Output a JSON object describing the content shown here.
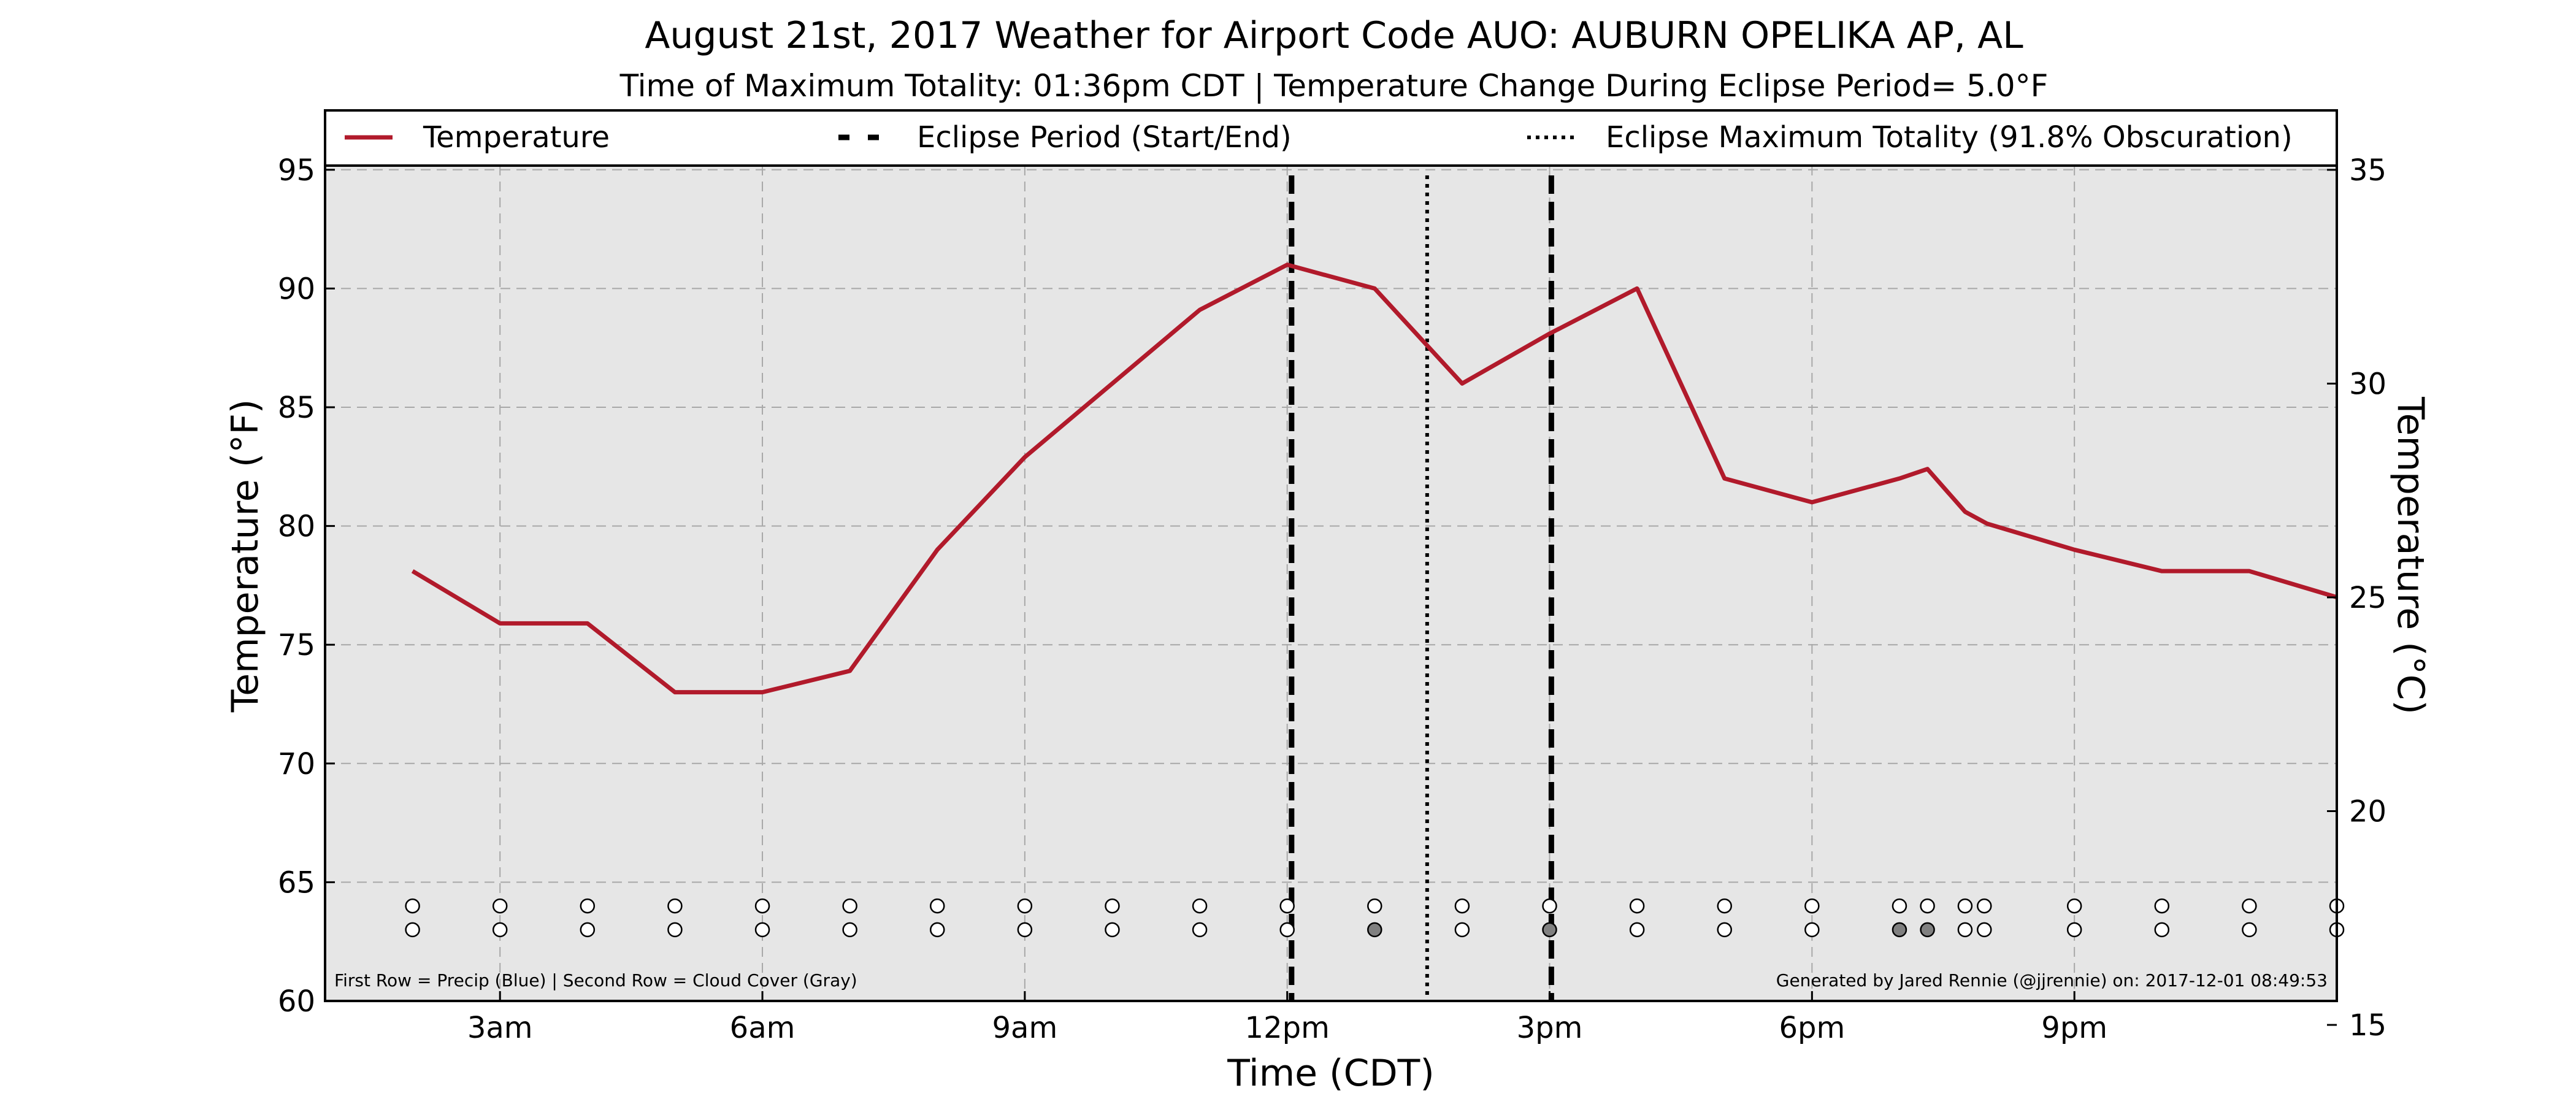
{
  "chart_data": {
    "type": "line",
    "title": "August 21st, 2017 Weather for Airport Code AUO: AUBURN OPELIKA AP, AL",
    "subtitle": "Time of Maximum Totality: 01:36pm CDT | Temperature Change During Eclipse Period= 5.0°F",
    "xlabel": "Time (CDT)",
    "ylabel": "Temperature (°F)",
    "ylabel_right": "Temperature (°C)",
    "xlim": [
      1.0,
      24.0
    ],
    "ylim": [
      60,
      97.5
    ],
    "ylim_right": [
      15.56,
      36.39
    ],
    "grid": true,
    "legend_placement": "top",
    "x_ticks": [
      {
        "x": 3,
        "label": "3am"
      },
      {
        "x": 6,
        "label": "6am"
      },
      {
        "x": 9,
        "label": "9am"
      },
      {
        "x": 12,
        "label": "12pm"
      },
      {
        "x": 15,
        "label": "3pm"
      },
      {
        "x": 18,
        "label": "6pm"
      },
      {
        "x": 21,
        "label": "9pm"
      }
    ],
    "y_ticks": [
      60,
      65,
      70,
      75,
      80,
      85,
      90,
      95
    ],
    "y_ticks_right": [
      15,
      20,
      25,
      30,
      35
    ],
    "series": [
      {
        "name": "Temperature",
        "color": "#b11a2b",
        "x": [
          2.0,
          3.0,
          4.0,
          5.0,
          6.0,
          7.0,
          8.0,
          9.0,
          10.0,
          11.0,
          12.0,
          13.0,
          14.0,
          15.0,
          16.0,
          17.0,
          18.0,
          19.0,
          19.32,
          19.75,
          20.0,
          21.0,
          22.0,
          23.0,
          24.0
        ],
        "y": [
          78.1,
          75.9,
          75.9,
          73.0,
          73.0,
          73.9,
          79.0,
          82.9,
          86.0,
          89.1,
          91.0,
          90.0,
          86.0,
          88.1,
          90.0,
          82.0,
          81.0,
          82.0,
          82.4,
          80.6,
          80.1,
          79.0,
          78.1,
          78.1,
          77.0
        ]
      }
    ],
    "eclipse_start": 12.05,
    "eclipse_end": 15.02,
    "eclipse_max": 13.6,
    "observation_rows": {
      "x": [
        2.0,
        3.0,
        4.0,
        5.0,
        6.0,
        7.0,
        8.0,
        9.0,
        10.0,
        11.0,
        12.0,
        13.0,
        14.0,
        15.0,
        16.0,
        17.0,
        18.0,
        19.0,
        19.32,
        19.75,
        19.97,
        21.0,
        22.0,
        23.0,
        24.0
      ],
      "precip": [
        0,
        0,
        0,
        0,
        0,
        0,
        0,
        0,
        0,
        0,
        0,
        0,
        0,
        0,
        0,
        0,
        0,
        0,
        0,
        0,
        0,
        0,
        0,
        0,
        0
      ],
      "cloud": [
        0,
        0,
        0,
        0,
        0,
        0,
        0,
        0,
        0,
        0,
        0,
        1,
        0,
        1,
        0,
        0,
        0,
        1,
        1,
        0,
        0,
        0,
        0,
        0,
        0
      ],
      "precip_y": 64.0,
      "cloud_y": 63.0
    },
    "colors": {
      "plot_bg": "#e6e6e6",
      "grid": "#a8a8a8",
      "cloud_fill": "#808080",
      "empty_fill": "#ffffff"
    },
    "legend": [
      {
        "label": "Temperature",
        "style": "solid",
        "color": "#b11a2b"
      },
      {
        "label": "Eclipse Period (Start/End)",
        "style": "dashed",
        "color": "#000000"
      },
      {
        "label": "Eclipse Maximum Totality (91.8% Obscuration)",
        "style": "dotted",
        "color": "#000000"
      }
    ],
    "footnote_left": "First Row = Precip (Blue) | Second Row = Cloud Cover (Gray)",
    "footnote_right": "Generated by Jared Rennie (@jjrennie) on: 2017-12-01 08:49:53"
  }
}
